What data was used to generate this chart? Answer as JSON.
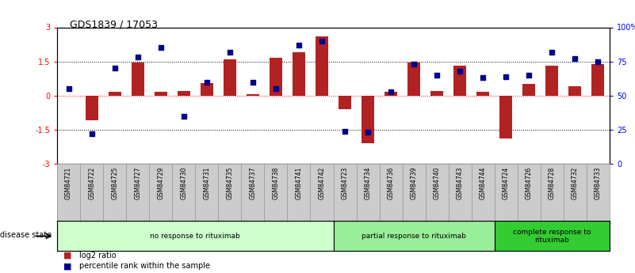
{
  "title": "GDS1839 / 17053",
  "samples": [
    "GSM84721",
    "GSM84722",
    "GSM84725",
    "GSM84727",
    "GSM84729",
    "GSM84730",
    "GSM84731",
    "GSM84735",
    "GSM84737",
    "GSM84738",
    "GSM84741",
    "GSM84742",
    "GSM84723",
    "GSM84734",
    "GSM84736",
    "GSM84739",
    "GSM84740",
    "GSM84743",
    "GSM84744",
    "GSM84724",
    "GSM84726",
    "GSM84728",
    "GSM84732",
    "GSM84733"
  ],
  "log2_ratio": [
    0.0,
    -1.1,
    0.15,
    1.45,
    0.15,
    0.2,
    0.55,
    1.6,
    0.05,
    1.65,
    1.9,
    2.6,
    -0.6,
    -2.1,
    0.15,
    1.45,
    0.2,
    1.3,
    0.15,
    -1.9,
    0.5,
    1.3,
    0.4,
    1.4
  ],
  "percentile": [
    55,
    22,
    70,
    78,
    85,
    35,
    60,
    82,
    60,
    55,
    87,
    90,
    24,
    23,
    53,
    73,
    65,
    68,
    63,
    64,
    65,
    82,
    77,
    75
  ],
  "bar_color": "#b22222",
  "dot_color": "#00008b",
  "background_color": "#ffffff",
  "ylim_left": [
    -3,
    3
  ],
  "ylim_right": [
    0,
    100
  ],
  "yticks_left": [
    -3,
    -1.5,
    0,
    1.5,
    3
  ],
  "ytick_labels_left": [
    "-3",
    "-1.5",
    "0",
    "1.5",
    "3"
  ],
  "yticks_right": [
    0,
    25,
    50,
    75,
    100
  ],
  "ytick_labels_right": [
    "0",
    "25",
    "50",
    "75",
    "100%"
  ],
  "hlines": [
    -1.5,
    0,
    1.5
  ],
  "hline_styles": [
    "dotted",
    "dotted",
    "dotted"
  ],
  "hline_colors": [
    "black",
    "red",
    "black"
  ],
  "groups": [
    {
      "label": "no response to rituximab",
      "start": 0,
      "end": 11,
      "color": "#ccffcc"
    },
    {
      "label": "partial response to rituximab",
      "start": 12,
      "end": 18,
      "color": "#99ee99"
    },
    {
      "label": "complete response to\nrituximab",
      "start": 19,
      "end": 23,
      "color": "#33cc33"
    }
  ],
  "legend_items": [
    {
      "label": "log2 ratio",
      "color": "#b22222"
    },
    {
      "label": "percentile rank within the sample",
      "color": "#00008b"
    }
  ],
  "disease_state_label": "disease state",
  "bar_width": 0.55,
  "label_cell_color": "#cccccc",
  "label_border_color": "#999999"
}
